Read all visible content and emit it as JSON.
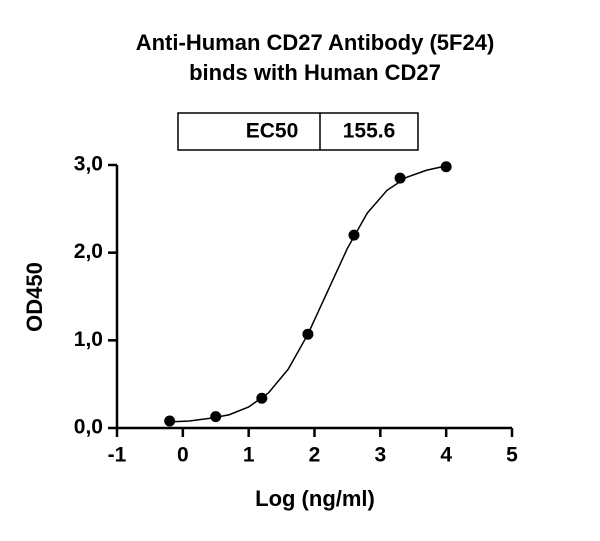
{
  "chart_data": {
    "type": "scatter",
    "title": [
      "Anti-Human CD27 Antibody (5F24)",
      "binds with Human CD27"
    ],
    "ec50_table": {
      "label": "EC50",
      "value": 155.6
    },
    "xlabel": "Log (ng/ml)",
    "ylabel": "OD450",
    "x": [
      -0.2,
      0.5,
      1.2,
      1.9,
      2.6,
      3.3,
      4.0
    ],
    "values": [
      0.08,
      0.13,
      0.34,
      1.07,
      2.2,
      2.85,
      2.98
    ],
    "fit_curve": {
      "x": [
        -0.2,
        0.1,
        0.4,
        0.7,
        1.0,
        1.3,
        1.6,
        1.9,
        2.2,
        2.5,
        2.8,
        3.1,
        3.4,
        3.7,
        4.0
      ],
      "values": [
        0.07,
        0.08,
        0.11,
        0.15,
        0.24,
        0.4,
        0.67,
        1.07,
        1.56,
        2.05,
        2.45,
        2.71,
        2.86,
        2.94,
        2.99
      ]
    },
    "color": "#000000",
    "xlim": [
      -1,
      5
    ],
    "xticks": [
      -1,
      0,
      1,
      2,
      3,
      4,
      5
    ],
    "ylim": [
      0,
      3
    ],
    "yticks": [
      {
        "value": 0,
        "label": "0,0"
      },
      {
        "value": 1,
        "label": "1,0"
      },
      {
        "value": 2,
        "label": "2,0"
      },
      {
        "value": 3,
        "label": "3,0"
      }
    ]
  }
}
